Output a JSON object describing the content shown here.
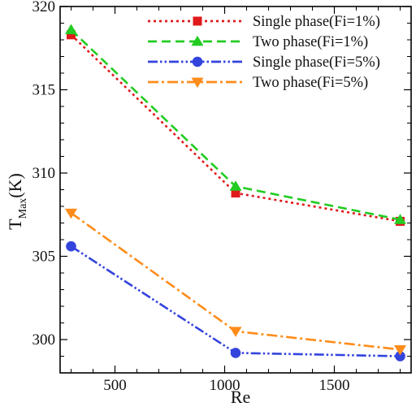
{
  "chart_data": {
    "type": "line",
    "xlabel": "Re",
    "ylabel": {
      "main": "T",
      "sub": "Max",
      "unit": "(K)"
    },
    "xlim": [
      250,
      1850
    ],
    "ylim": [
      298,
      320
    ],
    "xticks": [
      500,
      1000,
      1500
    ],
    "yticks": [
      300,
      305,
      310,
      315,
      320
    ],
    "x": [
      300,
      1050,
      1800
    ],
    "grid": false,
    "legend_position": "top-right",
    "series": [
      {
        "name": "Single phase(Fi=1%)",
        "values": [
          318.3,
          308.8,
          307.1
        ],
        "color": "#e0191b",
        "dash": "dotted",
        "marker": "square"
      },
      {
        "name": "Two phase(Fi=1%)",
        "values": [
          318.6,
          309.2,
          307.2
        ],
        "color": "#22cc22",
        "dash": "dashed",
        "marker": "triangle-up"
      },
      {
        "name": "Single phase(Fi=5%)",
        "values": [
          305.6,
          299.2,
          299.0
        ],
        "color": "#3344dd",
        "dash": "dash-dot-dot",
        "marker": "circle"
      },
      {
        "name": "Two phase(Fi=5%)",
        "values": [
          307.6,
          300.5,
          299.4
        ],
        "color": "#ff8c1a",
        "dash": "dash-dot",
        "marker": "triangle-down"
      }
    ]
  }
}
